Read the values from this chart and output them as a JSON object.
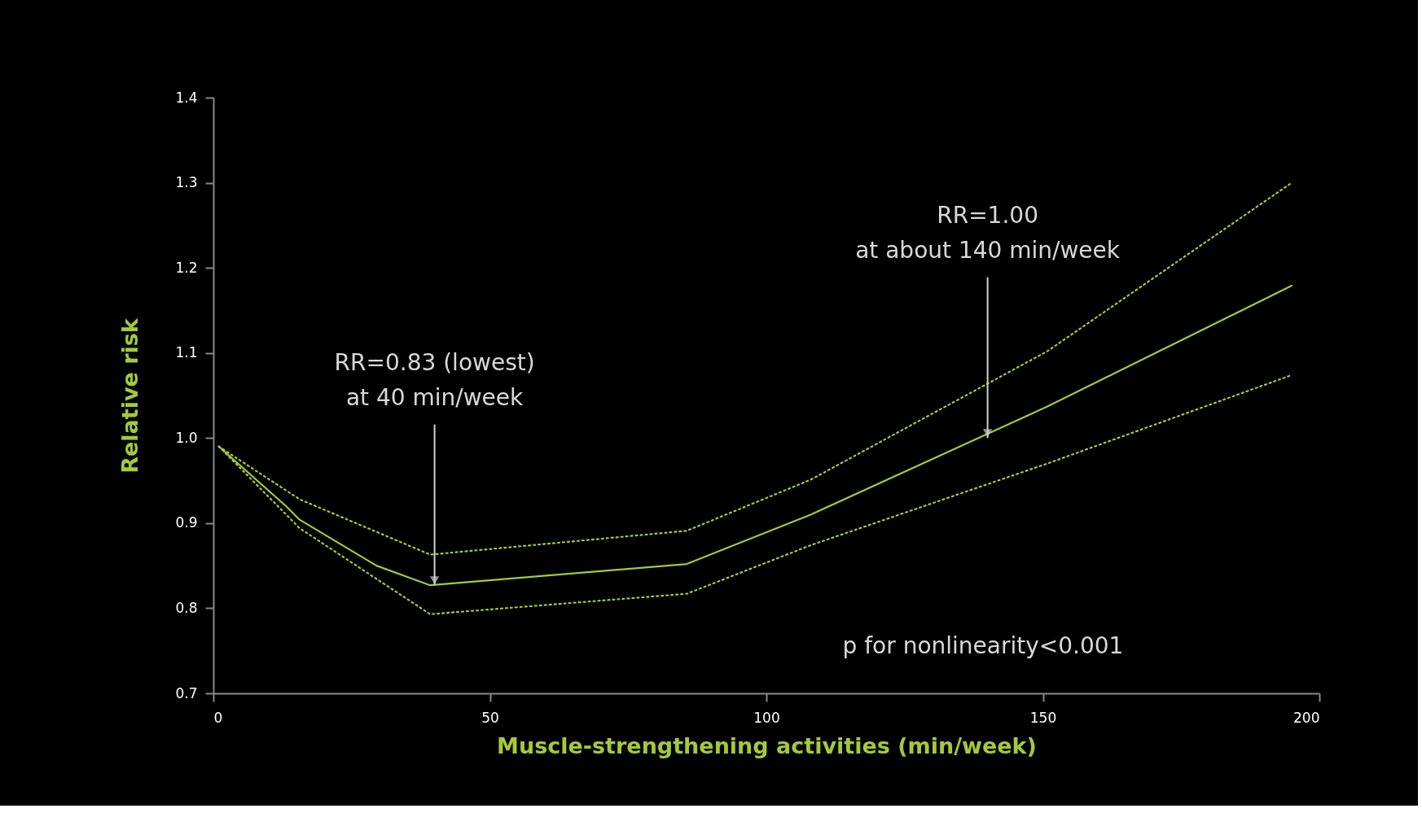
{
  "chart_data": {
    "type": "line",
    "xlabel": "Muscle-strengthening activities (min/week)",
    "ylabel": "Relative risk",
    "series": [
      {
        "color": "#a4c93a",
        "line_style": "solid",
        "x": [
          1,
          13.3,
          15.6,
          29.5,
          39.2,
          85.6,
          108,
          150.8,
          195
        ],
        "values": [
          0.99,
          0.919,
          0.904,
          0.85,
          0.827,
          0.852,
          0.91,
          1.037,
          1.179
        ]
      },
      {
        "color": "#a4c93a",
        "line_style": "dotted",
        "x": [
          1,
          15.6,
          39.2,
          85.6,
          108,
          150.8,
          195
        ],
        "values": [
          0.99,
          0.928,
          0.863,
          0.891,
          0.951,
          1.102,
          1.3
        ]
      },
      {
        "color": "#a4c93a",
        "line_style": "dotted",
        "x": [
          1,
          15.6,
          39.2,
          85.6,
          108,
          150.8,
          195
        ],
        "values": [
          0.99,
          0.894,
          0.793,
          0.817,
          0.874,
          0.97,
          1.074
        ]
      }
    ],
    "xlim": [
      0,
      200
    ],
    "xticks": [
      0,
      50,
      100,
      150,
      200
    ],
    "ylim": [
      0.7,
      1.4
    ],
    "yticks": [
      {
        "value": 0.7,
        "label": "0.7"
      },
      {
        "value": 0.8,
        "label": "0.8"
      },
      {
        "value": 0.9,
        "label": "0.9"
      },
      {
        "value": 1.0,
        "label": "1.0"
      },
      {
        "value": 1.1,
        "label": "1.1"
      },
      {
        "value": 1.2,
        "label": "1.2"
      },
      {
        "value": 1.3,
        "label": "1.3"
      },
      {
        "value": 1.4,
        "label": "1.4"
      }
    ],
    "annotations": [
      {
        "text": "RR=0.83 (lowest)\nat 40 min/week",
        "x": 40,
        "y": 0.827
      },
      {
        "text": "RR=1.00\nat about 140 min/week",
        "x": 140,
        "y": 1.0
      },
      "p for nonlinearity<0.001"
    ],
    "grid": false,
    "marker": "none"
  }
}
